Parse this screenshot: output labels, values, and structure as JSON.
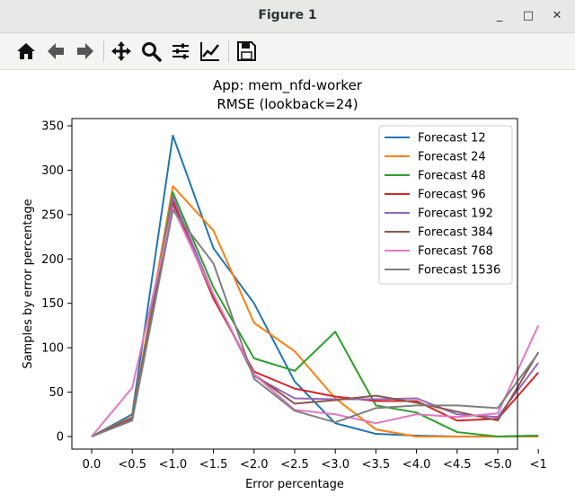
{
  "window": {
    "title": "Figure 1",
    "minimize_label": "_",
    "maximize_label": "□",
    "close_label": "✕"
  },
  "toolbar": {
    "tools": [
      {
        "name": "home-icon"
      },
      {
        "name": "back-arrow-icon"
      },
      {
        "name": "forward-arrow-icon"
      },
      {
        "name": "pan-move-icon"
      },
      {
        "name": "zoom-magnifier-icon"
      },
      {
        "name": "configure-subplots-icon"
      },
      {
        "name": "edit-axis-icon"
      },
      {
        "name": "save-floppy-icon"
      }
    ]
  },
  "chart_data": {
    "type": "line",
    "title": "App: mem_nfd-worker",
    "subtitle": "RMSE (lookback=24)",
    "xlabel": "Error percentage",
    "ylabel": "Samples by error percentage",
    "categories": [
      "0.0",
      "<0.5",
      "<1.0",
      "<1.5",
      "<2.0",
      "<2.5",
      "<3.0",
      "<3.5",
      "<4.0",
      "<4.5",
      "<5.0",
      "<1"
    ],
    "ylim": [
      0,
      350
    ],
    "yticks": [
      0,
      50,
      100,
      150,
      200,
      250,
      300,
      350
    ],
    "grid": false,
    "legend_position": "top-right",
    "series": [
      {
        "name": "Forecast 12",
        "color": "#1f77b4",
        "values": [
          0,
          25,
          339,
          212,
          150,
          62,
          15,
          3,
          1,
          0,
          0,
          1
        ]
      },
      {
        "name": "Forecast 24",
        "color": "#ff7f0e",
        "values": [
          0,
          22,
          282,
          232,
          128,
          96,
          43,
          8,
          0,
          0,
          0,
          0
        ]
      },
      {
        "name": "Forecast 48",
        "color": "#2ca02c",
        "values": [
          0,
          20,
          275,
          168,
          88,
          74,
          118,
          35,
          27,
          5,
          0,
          1
        ]
      },
      {
        "name": "Forecast 96",
        "color": "#d62728",
        "values": [
          0,
          20,
          265,
          155,
          73,
          54,
          45,
          40,
          40,
          18,
          20,
          72
        ]
      },
      {
        "name": "Forecast 192",
        "color": "#9467bd",
        "values": [
          0,
          20,
          270,
          160,
          68,
          43,
          42,
          42,
          43,
          25,
          22,
          83
        ]
      },
      {
        "name": "Forecast 384",
        "color": "#8c564b",
        "values": [
          0,
          21,
          260,
          158,
          70,
          37,
          41,
          46,
          38,
          28,
          18,
          95
        ]
      },
      {
        "name": "Forecast 768",
        "color": "#e377c2",
        "values": [
          0,
          55,
          258,
          160,
          70,
          30,
          25,
          15,
          25,
          22,
          26,
          125
        ]
      },
      {
        "name": "Forecast 1536",
        "color": "#7f7f7f",
        "values": [
          0,
          18,
          255,
          195,
          65,
          29,
          16,
          32,
          35,
          35,
          32,
          94
        ]
      }
    ]
  }
}
